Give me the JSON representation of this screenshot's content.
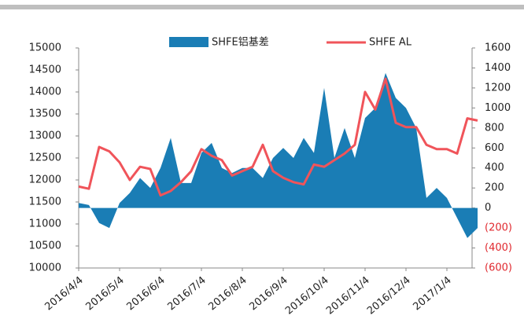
{
  "chart_data": {
    "type": "bar-area-line",
    "categories": [
      "2016/4/4",
      null,
      null,
      null,
      "2016/5/4",
      null,
      null,
      null,
      "2016/6/4",
      null,
      null,
      null,
      "2016/7/4",
      null,
      null,
      null,
      "2016/8/4",
      null,
      null,
      null,
      "2016/9/4",
      null,
      null,
      null,
      "2016/10/4",
      null,
      null,
      null,
      "2016/11/4",
      null,
      null,
      null,
      "2016/12/4",
      null,
      null,
      null,
      "2017/1/4",
      null,
      null,
      null
    ],
    "series": [
      {
        "name": "SHFE铝基差",
        "color": "#1a7db5",
        "kind": "area",
        "axis": "y2",
        "values": [
          50,
          30,
          -150,
          -200,
          50,
          150,
          300,
          200,
          400,
          700,
          250,
          250,
          550,
          650,
          400,
          350,
          400,
          400,
          300,
          500,
          600,
          500,
          700,
          550,
          1200,
          500,
          800,
          500,
          900,
          1000,
          1350,
          1100,
          1000,
          800,
          100,
          200,
          100,
          -100,
          -300,
          -200
        ]
      },
      {
        "name": "SHFE AL",
        "color": "#f0545a",
        "kind": "line",
        "values": [
          11850,
          11800,
          12750,
          12650,
          12400,
          12000,
          12300,
          12250,
          11650,
          11750,
          11950,
          12200,
          12700,
          12550,
          12450,
          12100,
          12200,
          12300,
          12800,
          12200,
          12050,
          11950,
          11900,
          12350,
          12300,
          12450,
          12600,
          12800,
          14000,
          13600,
          14300,
          13300,
          13200,
          13200,
          12800,
          12700,
          12700,
          12600,
          13400,
          13350
        ]
      }
    ],
    "ylim": [
      10000,
      15000
    ],
    "yticks": [
      10000,
      10500,
      11000,
      11500,
      12000,
      12500,
      13000,
      13500,
      14000,
      14500,
      15000
    ],
    "y2lim": [
      -600,
      1600
    ],
    "y2ticks": [
      {
        "value": -600,
        "label": "(600)"
      },
      {
        "value": -400,
        "label": "(400)"
      },
      {
        "value": -200,
        "label": "(200)"
      },
      0,
      200,
      400,
      600,
      800,
      1000,
      1200,
      1400,
      1600
    ],
    "legend": "top"
  }
}
